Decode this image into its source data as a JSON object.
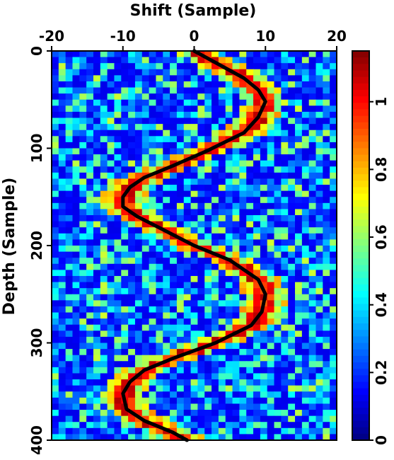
{
  "chart_data": {
    "type": "heatmap",
    "title": "",
    "xlabel": "Shift (Sample)",
    "ylabel": "Depth (Sample)",
    "x_axis_position": "top",
    "xlim": [
      -20,
      20
    ],
    "ylim": [
      0,
      400
    ],
    "y_inverted": true,
    "x_ticks": [
      "-20",
      "-10",
      "0",
      "10",
      "20"
    ],
    "y_ticks": [
      "0",
      "100",
      "200",
      "300",
      "400"
    ],
    "colorbar": {
      "label": "",
      "range": [
        0,
        1.15
      ],
      "ticks": [
        "0",
        "0.2",
        "0.4",
        "0.6",
        "0.8",
        "1"
      ],
      "colormap": "jet",
      "placement": "right"
    },
    "grid_shape": {
      "nx": 41,
      "ny": 64
    },
    "series": [
      {
        "name": "",
        "type": "line",
        "color": "#000000",
        "x": [
          0,
          3,
          7,
          9,
          10,
          9,
          7,
          2,
          -3,
          -7,
          -9,
          -10,
          -10,
          -8,
          -4,
          0,
          5,
          9,
          10,
          9.5,
          8,
          3,
          -3,
          -7,
          -9,
          -10,
          -9.5,
          -7,
          -3,
          -1
        ],
        "y": [
          0,
          12,
          28,
          40,
          52,
          68,
          84,
          102,
          118,
          130,
          140,
          150,
          160,
          170,
          185,
          200,
          215,
          235,
          250,
          268,
          282,
          300,
          316,
          328,
          340,
          352,
          368,
          380,
          392,
          400
        ]
      }
    ]
  },
  "colors": {
    "axis": "#000000",
    "background": "#ffffff",
    "curve": "#000000"
  }
}
